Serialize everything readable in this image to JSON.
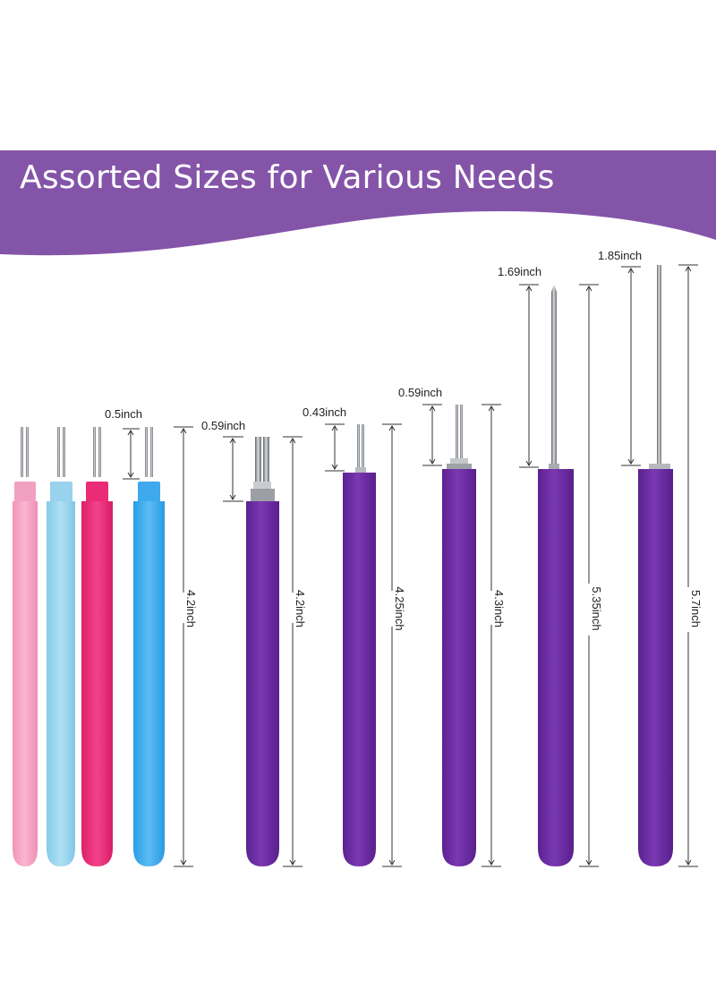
{
  "banner": {
    "title": "Assorted Sizes for Various Needs",
    "color": "#8454a9"
  },
  "colors": {
    "pink_handle": "#f7a8c6",
    "light_blue_handle": "#9ed6ee",
    "magenta_handle": "#ee2f7b",
    "blue_handle": "#44aef0",
    "purple_handle": "#6e2fa3",
    "metal": "#8d9196"
  },
  "tools": [
    {
      "name": "multi-color-set",
      "tip_length": "0.5inch",
      "total_length": "4.2inch"
    },
    {
      "name": "purple-slotted",
      "tip_length": "0.59inch",
      "total_length": "4.2inch"
    },
    {
      "name": "purple-short-slot",
      "tip_length": "0.43inch",
      "total_length": "4.25inch"
    },
    {
      "name": "purple-wide-slot",
      "tip_length": "0.59inch",
      "total_length": "4.3inch"
    },
    {
      "name": "purple-needle-1",
      "tip_length": "1.69inch",
      "total_length": "5.35inch"
    },
    {
      "name": "purple-needle-2",
      "tip_length": "1.85inch",
      "total_length": "5.7inch"
    }
  ]
}
